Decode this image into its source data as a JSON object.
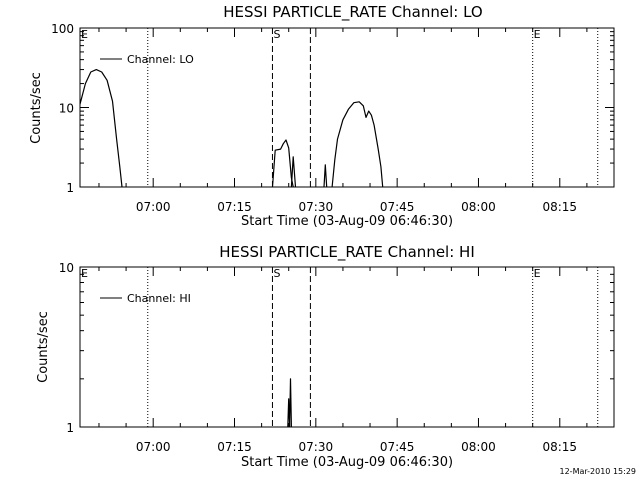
{
  "chart_data": [
    {
      "type": "line",
      "title": "HESSI PARTICLE_RATE Channel: LO",
      "xlabel": "Start Time (03-Aug-09 06:46:30)",
      "ylabel": "Counts/sec",
      "yscale": "log",
      "ylim": [
        1,
        100
      ],
      "xlim": [
        "06:46:30",
        "08:25:00"
      ],
      "ytick_labels": [
        "1",
        "10",
        "100"
      ],
      "xtick_labels": [
        "07:00",
        "07:15",
        "07:30",
        "07:45",
        "08:00",
        "08:15"
      ],
      "legend": "top-left",
      "grid": false,
      "series": [
        {
          "name": "Channel: LO",
          "segments": [
            [
              [
                "06:46:30",
                11
              ],
              [
                "06:47:30",
                20
              ],
              [
                "06:48:30",
                28
              ],
              [
                "06:49:30",
                30
              ],
              [
                "06:50:30",
                28
              ],
              [
                "06:51:30",
                22
              ],
              [
                "06:52:30",
                12
              ],
              [
                "06:53:15",
                4
              ],
              [
                "06:53:50",
                1.8
              ],
              [
                "06:54:15",
                1
              ]
            ],
            [
              [
                "07:22:00",
                1
              ],
              [
                "07:22:30",
                2.9
              ],
              [
                "07:23:30",
                3.0
              ],
              [
                "07:24:00",
                3.5
              ],
              [
                "07:24:30",
                3.9
              ],
              [
                "07:25:00",
                3.1
              ],
              [
                "07:25:30",
                1.3
              ],
              [
                "07:25:50",
                1
              ]
            ],
            [
              [
                "07:25:30",
                1
              ],
              [
                "07:25:50",
                2.4
              ],
              [
                "07:26:15",
                1
              ]
            ],
            [
              [
                "07:31:30",
                1
              ],
              [
                "07:31:45",
                1.9
              ],
              [
                "07:32:00",
                1
              ]
            ],
            [
              [
                "07:33:00",
                1
              ],
              [
                "07:33:30",
                2.2
              ],
              [
                "07:34:00",
                4
              ],
              [
                "07:35:00",
                7
              ],
              [
                "07:36:00",
                9.5
              ],
              [
                "07:37:00",
                11.5
              ],
              [
                "07:38:00",
                11.8
              ],
              [
                "07:38:45",
                10.5
              ],
              [
                "07:39:15",
                7.5
              ],
              [
                "07:39:45",
                9
              ],
              [
                "07:40:15",
                8
              ],
              [
                "07:40:45",
                6
              ],
              [
                "07:41:30",
                3
              ],
              [
                "07:42:00",
                1.8
              ],
              [
                "07:42:20",
                1
              ]
            ]
          ]
        }
      ],
      "markers": [
        {
          "label": "E",
          "time": "06:46:30",
          "style": "dotted"
        },
        {
          "label": "",
          "time": "06:59:00",
          "style": "dotted"
        },
        {
          "label": "S",
          "time": "07:22:00",
          "style": "dashed"
        },
        {
          "label": "",
          "time": "07:29:00",
          "style": "dashed"
        },
        {
          "label": "E",
          "time": "08:10:00",
          "style": "dotted"
        },
        {
          "label": "",
          "time": "08:22:00",
          "style": "dotted"
        }
      ]
    },
    {
      "type": "line",
      "title": "HESSI PARTICLE_RATE Channel: HI",
      "xlabel": "Start Time (03-Aug-09 06:46:30)",
      "ylabel": "Counts/sec",
      "yscale": "log",
      "ylim": [
        1,
        10
      ],
      "xlim": [
        "06:46:30",
        "08:25:00"
      ],
      "ytick_labels": [
        "1",
        "10"
      ],
      "xtick_labels": [
        "07:00",
        "07:15",
        "07:30",
        "07:45",
        "08:00",
        "08:15"
      ],
      "legend": "top-left",
      "grid": false,
      "series": [
        {
          "name": "Channel: HI",
          "segments": [
            [
              [
                "07:24:50",
                1
              ],
              [
                "07:25:00",
                1.5
              ],
              [
                "07:25:10",
                1
              ]
            ],
            [
              [
                "07:25:10",
                1
              ],
              [
                "07:25:20",
                2.0
              ],
              [
                "07:25:30",
                1
              ]
            ]
          ]
        }
      ],
      "markers": [
        {
          "label": "E",
          "time": "06:46:30",
          "style": "dotted"
        },
        {
          "label": "",
          "time": "06:59:00",
          "style": "dotted"
        },
        {
          "label": "S",
          "time": "07:22:00",
          "style": "dashed"
        },
        {
          "label": "",
          "time": "07:29:00",
          "style": "dashed"
        },
        {
          "label": "E",
          "time": "08:10:00",
          "style": "dotted"
        },
        {
          "label": "",
          "time": "08:22:00",
          "style": "dotted"
        }
      ]
    }
  ],
  "footer": {
    "timestamp": "12-Mar-2010 15:29"
  },
  "colors": {
    "line": "#000000",
    "background": "#ffffff"
  }
}
